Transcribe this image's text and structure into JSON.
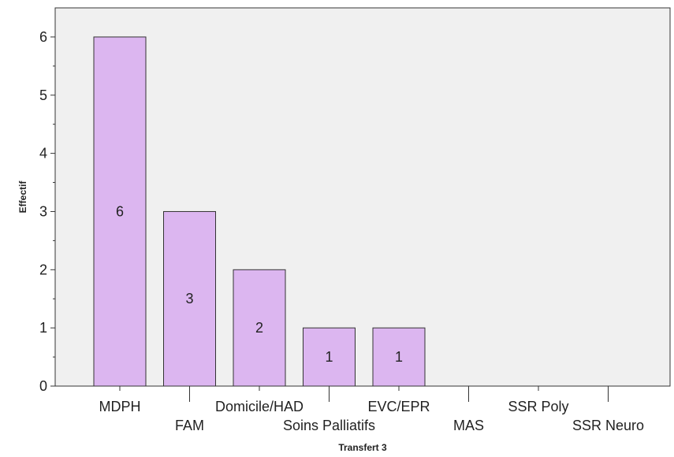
{
  "chart_data": {
    "type": "bar",
    "xlabel": "Transfert 3",
    "ylabel": "Effectif",
    "ylim": [
      0,
      6.5
    ],
    "yticks": [
      0,
      1,
      2,
      3,
      4,
      5,
      6
    ],
    "categories": [
      "MDPH",
      "FAM",
      "Domicile/HAD",
      "Soins Palliatifs",
      "EVC/EPR",
      "MAS",
      "SSR Poly",
      "SSR Neuro"
    ],
    "values": [
      6,
      3,
      2,
      1,
      1,
      0,
      0,
      0
    ],
    "data_labels": [
      "6",
      "3",
      "2",
      "1",
      "1",
      "",
      "",
      ""
    ],
    "grid": false,
    "colors": {
      "bar_fill": "#dcb6f0",
      "bar_stroke": "#333333",
      "plot_background": "#f0f0f0",
      "axis": "#333333"
    }
  }
}
